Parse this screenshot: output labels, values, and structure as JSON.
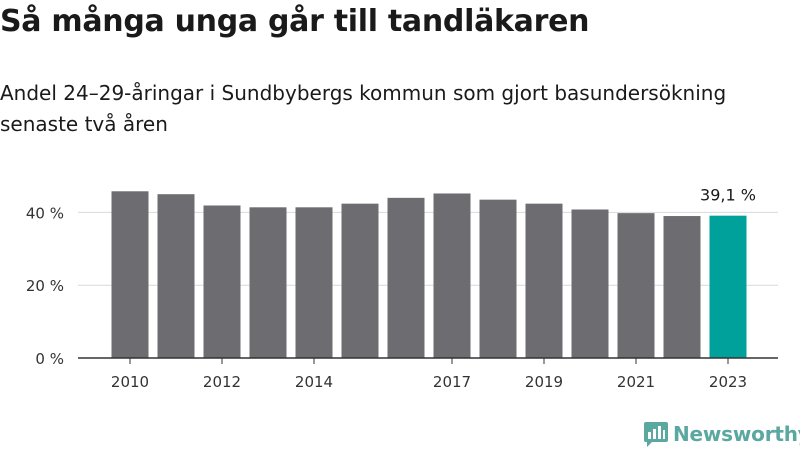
{
  "title": "Så många unga går till tandläkaren",
  "subtitle": "Andel 24–29-åringar i Sundbybergs kommun som gjort basundersökning senaste två åren",
  "brand": {
    "name": "Newsworthy",
    "icon": "newsworthy-logo-icon",
    "color": "#5aa8a0"
  },
  "colors": {
    "bar": "#6d6c70",
    "highlight": "#00a19a",
    "grid": "#d9d9d9",
    "axis": "#333333",
    "text": "#333333"
  },
  "chart_data": {
    "type": "bar",
    "title": "Så många unga går till tandläkaren",
    "subtitle": "Andel 24–29-åringar i Sundbybergs kommun som gjort basundersökning senaste två åren",
    "xlabel": "",
    "ylabel": "",
    "categories": [
      "2010",
      "2011",
      "2012",
      "2013",
      "2014",
      "2015",
      "2016",
      "2017",
      "2018",
      "2019",
      "2020",
      "2021",
      "2022",
      "2023"
    ],
    "x_tick_labels": [
      "2010",
      "",
      "2012",
      "",
      "2014",
      "",
      "",
      "2017",
      "",
      "2019",
      "",
      "2021",
      "",
      "2023"
    ],
    "values": [
      45.8,
      45.0,
      41.9,
      41.4,
      41.4,
      42.4,
      44.0,
      45.2,
      43.5,
      42.4,
      40.8,
      39.8,
      39.0,
      39.1
    ],
    "highlight_index": 13,
    "annotation": {
      "index": 13,
      "label": "39,1 %"
    },
    "y_ticks": [
      0,
      20,
      40
    ],
    "y_tick_labels": [
      "0 %",
      "20 %",
      "40 %"
    ],
    "ylim": [
      0,
      50
    ],
    "grid": true,
    "legend": "none"
  }
}
